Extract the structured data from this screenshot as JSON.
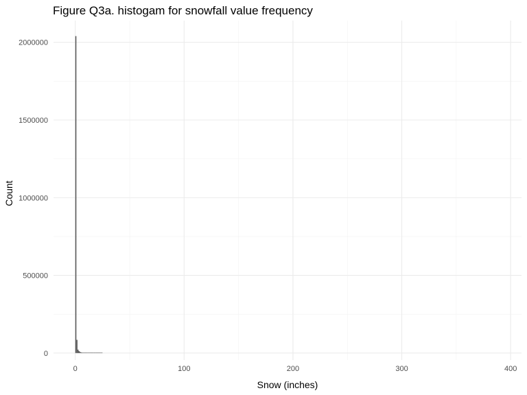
{
  "chart_data": {
    "type": "bar",
    "title": "Figure Q3a. histogam for snowfall value frequency",
    "xlabel": "Snow (inches)",
    "ylabel": "Count",
    "xlim": [
      -20,
      410
    ],
    "ylim": [
      -45000,
      2140000
    ],
    "x_ticks": [
      0,
      100,
      200,
      300,
      400
    ],
    "x_tick_labels": [
      "0",
      "100",
      "200",
      "300",
      "400"
    ],
    "y_ticks": [
      0,
      500000,
      1000000,
      1500000,
      2000000
    ],
    "y_tick_labels": [
      "0",
      "500000",
      "1000000",
      "1500000",
      "2000000"
    ],
    "grid": true,
    "bar_color": "#595959",
    "bins": [
      {
        "x": 0.5,
        "count": 2040000
      },
      {
        "x": 1.5,
        "count": 85000
      },
      {
        "x": 2.5,
        "count": 22000
      },
      {
        "x": 3.5,
        "count": 12000
      },
      {
        "x": 4.5,
        "count": 7000
      },
      {
        "x": 5.5,
        "count": 4000
      },
      {
        "x": 6.5,
        "count": 3000
      },
      {
        "x": 7.5,
        "count": 2000
      },
      {
        "x": 8.5,
        "count": 1500
      },
      {
        "x": 9.5,
        "count": 1200
      },
      {
        "x": 10.5,
        "count": 900
      },
      {
        "x": 11.5,
        "count": 700
      },
      {
        "x": 12.5,
        "count": 500
      },
      {
        "x": 13.5,
        "count": 400
      },
      {
        "x": 14.5,
        "count": 300
      },
      {
        "x": 15.5,
        "count": 250
      },
      {
        "x": 16.5,
        "count": 200
      },
      {
        "x": 17.5,
        "count": 150
      },
      {
        "x": 18.5,
        "count": 120
      },
      {
        "x": 19.5,
        "count": 100
      },
      {
        "x": 20.5,
        "count": 80
      },
      {
        "x": 21.5,
        "count": 60
      },
      {
        "x": 22.5,
        "count": 50
      },
      {
        "x": 23.5,
        "count": 40
      },
      {
        "x": 24.5,
        "count": 30
      }
    ]
  }
}
